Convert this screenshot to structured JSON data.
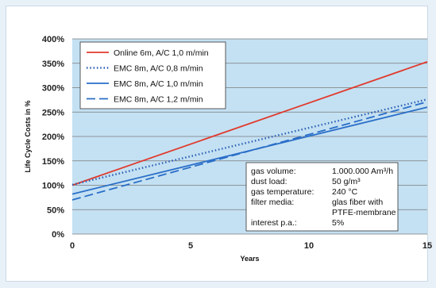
{
  "chart_data": {
    "type": "line",
    "xlabel": "Years",
    "ylabel": "Life Cycle Costs in %",
    "xlim": [
      0,
      15
    ],
    "ylim": [
      0,
      400
    ],
    "x_ticks": [
      "0",
      "5",
      "10",
      "15"
    ],
    "y_ticks": [
      "0%",
      "50%",
      "100%",
      "150%",
      "200%",
      "250%",
      "300%",
      "350%",
      "400%"
    ],
    "grid": "horizontal",
    "plot_background": "#c4e1f3",
    "legend_position": "top-left",
    "series": [
      {
        "name": "Online 6m, A/C 1,0 m/min",
        "x": [
          0,
          15
        ],
        "y": [
          100,
          353
        ],
        "color": "#e03b2e",
        "dash": "solid"
      },
      {
        "name": "EMC 8m, A/C 0,8 m/min",
        "x": [
          0,
          15
        ],
        "y": [
          101,
          276
        ],
        "color": "#2a5fb5",
        "dash": "dotted"
      },
      {
        "name": "EMC 8m, A/C 1,0 m/min",
        "x": [
          0,
          15
        ],
        "y": [
          82,
          260
        ],
        "color": "#2a6ec8",
        "dash": "solid"
      },
      {
        "name": "EMC 8m, A/C 1,2 m/min",
        "x": [
          0,
          15
        ],
        "y": [
          70,
          271
        ],
        "color": "#2a6ec8",
        "dash": "dashed"
      }
    ],
    "info_box": [
      {
        "label": "gas volume:",
        "value": "1.000.000 Am³/h"
      },
      {
        "label": "dust load:",
        "value": "50 g/m³"
      },
      {
        "label": "gas temperature:",
        "value": "240 °C"
      },
      {
        "label": "filter media:",
        "value": "glas fiber with"
      },
      {
        "label": "",
        "value": "PTFE-membrane"
      },
      {
        "label": "interest p.a.:",
        "value": "5%"
      }
    ]
  }
}
